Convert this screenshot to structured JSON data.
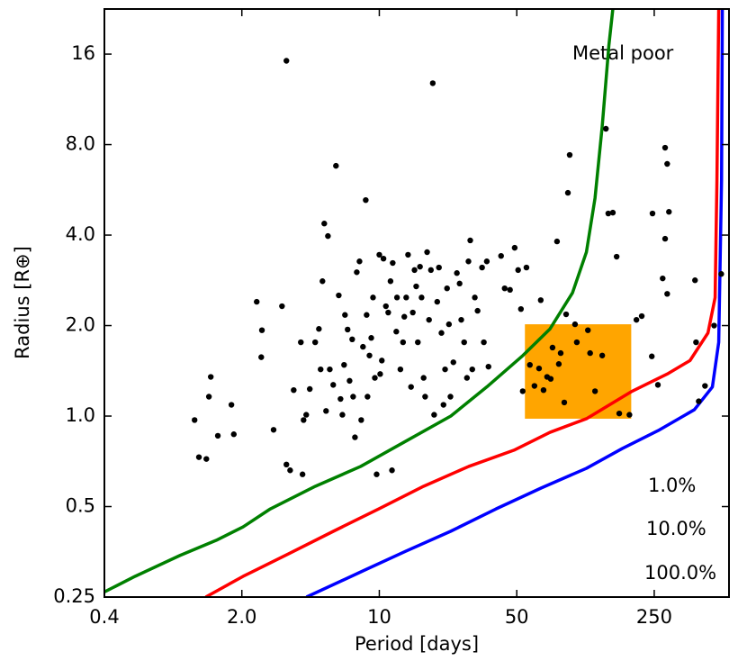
{
  "chart_data": {
    "type": "scatter",
    "xlabel": "Period [days]",
    "ylabel": "Radius [R⊕]",
    "annotation": "Metal poor",
    "xlog": true,
    "ylog": true,
    "xlim": [
      0.4,
      600
    ],
    "ylim": [
      0.25,
      22.6
    ],
    "xticks": [
      0.4,
      {
        "value": 2,
        "label": "2.0"
      },
      10,
      50,
      250
    ],
    "yticks": [
      0.25,
      0.5,
      {
        "value": 1,
        "label": "1.0"
      },
      {
        "value": 2,
        "label": "2.0"
      },
      {
        "value": 4,
        "label": "4.0"
      },
      {
        "value": 8,
        "label": "8.0"
      },
      16
    ],
    "box": {
      "color": "#ffa500",
      "x": [
        55,
        191
      ],
      "y": [
        0.98,
        2.02
      ]
    },
    "lines": [
      {
        "name": "1.0%",
        "color": "#008000",
        "x": [
          0.4,
          0.573,
          0.97,
          1.48,
          2.03,
          2.79,
          4.73,
          8.04,
          13.6,
          23.1,
          35.2,
          53.7,
          73.8,
          96,
          113,
          125,
          136,
          147,
          154
        ],
        "y": [
          0.26,
          0.293,
          0.344,
          0.386,
          0.428,
          0.491,
          0.584,
          0.68,
          0.824,
          1.0,
          1.25,
          1.59,
          1.95,
          2.57,
          3.51,
          5.31,
          9.22,
          17.1,
          22.6
        ]
      },
      {
        "name": "10.0%",
        "color": "#ff0000",
        "x": [
          1.31,
          2.03,
          3.45,
          5.85,
          9.92,
          16.8,
          28.5,
          48.4,
          73.8,
          113,
          191,
          291,
          380,
          469,
          510,
          521,
          532
        ],
        "y": [
          0.25,
          0.293,
          0.348,
          0.414,
          0.491,
          0.584,
          0.68,
          0.77,
          0.883,
          0.98,
          1.205,
          1.38,
          1.53,
          1.89,
          2.48,
          6.09,
          22.6
        ]
      },
      {
        "name": "100.0%",
        "color": "#0000ff",
        "x": [
          4.26,
          8.04,
          13.6,
          23.1,
          39.2,
          66.4,
          113,
          172,
          262,
          400,
          494,
          532,
          550,
          555
        ],
        "y": [
          0.25,
          0.303,
          0.355,
          0.414,
          0.491,
          0.576,
          0.67,
          0.78,
          0.895,
          1.05,
          1.25,
          1.76,
          6.09,
          22.6
        ]
      }
    ],
    "points": {
      "color": "#000000",
      "x": [
        1.15,
        1.21,
        1.32,
        1.36,
        1.39,
        1.51,
        1.77,
        1.82,
        2.38,
        2.53,
        2.51,
        2.9,
        3.2,
        3.37,
        3.37,
        3.52,
        3.67,
        3.99,
        4.07,
        4.12,
        4.25,
        4.43,
        4.72,
        4.93,
        5.03,
        5.14,
        5.25,
        5.36,
        5.48,
        5.6,
        5.83,
        6.02,
        6.22,
        6.35,
        6.49,
        6.62,
        6.69,
        6.9,
        7.06,
        7.28,
        7.36,
        7.52,
        7.68,
        7.93,
        8.09,
        8.26,
        8.53,
        8.62,
        8.71,
        8.91,
        9.1,
        9.29,
        9.49,
        9.69,
        10,
        10.1,
        10.3,
        10.5,
        10.8,
        11.1,
        11.4,
        11.6,
        11.7,
        12.2,
        12.3,
        12.8,
        13.2,
        13.4,
        13.7,
        14,
        14.5,
        14.8,
        15.1,
        15.4,
        15.7,
        16.1,
        16.4,
        16.8,
        17.1,
        17.5,
        17.9,
        18.3,
        18.7,
        19,
        19.7,
        20.1,
        20.7,
        21.2,
        21.6,
        22.1,
        22.6,
        23,
        23.8,
        24.8,
        25.6,
        26.1,
        27,
        27.9,
        28.4,
        29,
        29.7,
        30.6,
        31.6,
        33.3,
        34,
        35.2,
        35.9,
        41.6,
        43.4,
        46.2,
        48.8,
        50.8,
        52.5,
        53.6,
        56,
        58.3,
        61.5,
        64.9,
        66.2,
        68.4,
        71.3,
        74.4,
        76,
        80.1,
        81.8,
        83.6,
        87.2,
        89.1,
        91,
        92.9,
        98.9,
        101,
        115,
        118,
        125,
        136,
        142,
        146,
        154,
        161,
        166,
        187,
        203,
        216,
        243,
        245,
        276,
        284,
        291,
        297,
        291,
        284,
        403,
        408,
        453,
        504,
        548,
        421,
        261
      ],
      "y": [
        0.97,
        0.73,
        0.72,
        1.16,
        1.35,
        0.86,
        1.09,
        0.87,
        2.4,
        1.93,
        1.57,
        0.9,
        2.32,
        15.2,
        0.69,
        0.66,
        1.22,
        1.76,
        0.64,
        0.97,
        1.01,
        1.23,
        1.76,
        1.95,
        1.43,
        2.81,
        4.37,
        1.04,
        3.97,
        1.43,
        1.27,
        6.8,
        2.52,
        1.14,
        1.01,
        1.48,
        2.17,
        1.94,
        1.31,
        1.8,
        1.16,
        0.85,
        3.01,
        3.27,
        0.97,
        1.7,
        5.23,
        2.17,
        1.16,
        1.59,
        1.82,
        2.48,
        1.34,
        0.64,
        3.44,
        1.38,
        1.53,
        3.34,
        2.32,
        2.21,
        2.81,
        0.66,
        3.23,
        1.91,
        2.48,
        1.43,
        1.76,
        2.14,
        2.48,
        3.44,
        1.25,
        2.21,
        3.06,
        2.7,
        1.76,
        3.14,
        2.48,
        1.34,
        1.16,
        3.51,
        2.09,
        3.06,
        12.8,
        1.01,
        2.4,
        3.12,
        1.89,
        1.09,
        1.43,
        2.66,
        2.02,
        1.16,
        1.51,
        2.99,
        2.76,
        2.09,
        1.76,
        1.34,
        3.27,
        3.84,
        1.43,
        2.48,
        2.24,
        3.12,
        1.76,
        3.27,
        1.46,
        3.41,
        2.66,
        2.63,
        3.63,
        3.06,
        2.27,
        1.21,
        3.12,
        1.48,
        1.26,
        1.44,
        2.43,
        1.22,
        1.35,
        1.33,
        1.69,
        3.81,
        1.49,
        1.62,
        1.11,
        2.18,
        5.53,
        7.39,
        2.02,
        1.76,
        1.93,
        1.62,
        1.21,
        1.59,
        9.03,
        4.72,
        4.75,
        3.39,
        1.02,
        1.01,
        2.09,
        2.15,
        1.58,
        4.72,
        2.87,
        7.81,
        2.55,
        4.78,
        6.9,
        3.89,
        2.83,
        1.76,
        1.26,
        2.0,
        2.97,
        1.12,
        1.27
      ]
    }
  }
}
